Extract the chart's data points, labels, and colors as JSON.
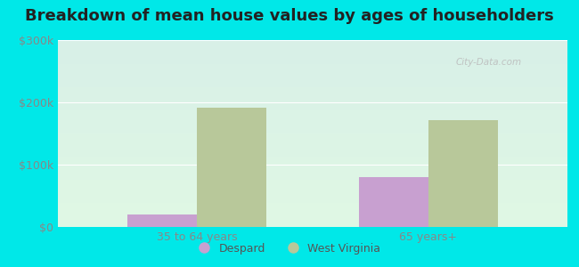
{
  "title": "Breakdown of mean house values by ages of householders",
  "categories": [
    "35 to 64 years",
    "65 years+"
  ],
  "despard_values": [
    20000,
    80000
  ],
  "wv_values": [
    192000,
    172000
  ],
  "ylim": [
    0,
    300000
  ],
  "yticks": [
    0,
    100000,
    200000,
    300000
  ],
  "ytick_labels": [
    "$0",
    "$100k",
    "$200k",
    "$300k"
  ],
  "despard_color": "#c8a0d0",
  "wv_color": "#b8c89a",
  "outer_bg": "#00e8e8",
  "plot_bg_top": "#d8f0e8",
  "plot_bg_bottom": "#e0f8e8",
  "grid_color": "#c8e8d8",
  "title_fontsize": 13,
  "bar_width": 0.3,
  "legend_labels": [
    "Despard",
    "West Virginia"
  ],
  "watermark": "City-Data.com",
  "tick_color": "#888888",
  "label_color": "#555555"
}
